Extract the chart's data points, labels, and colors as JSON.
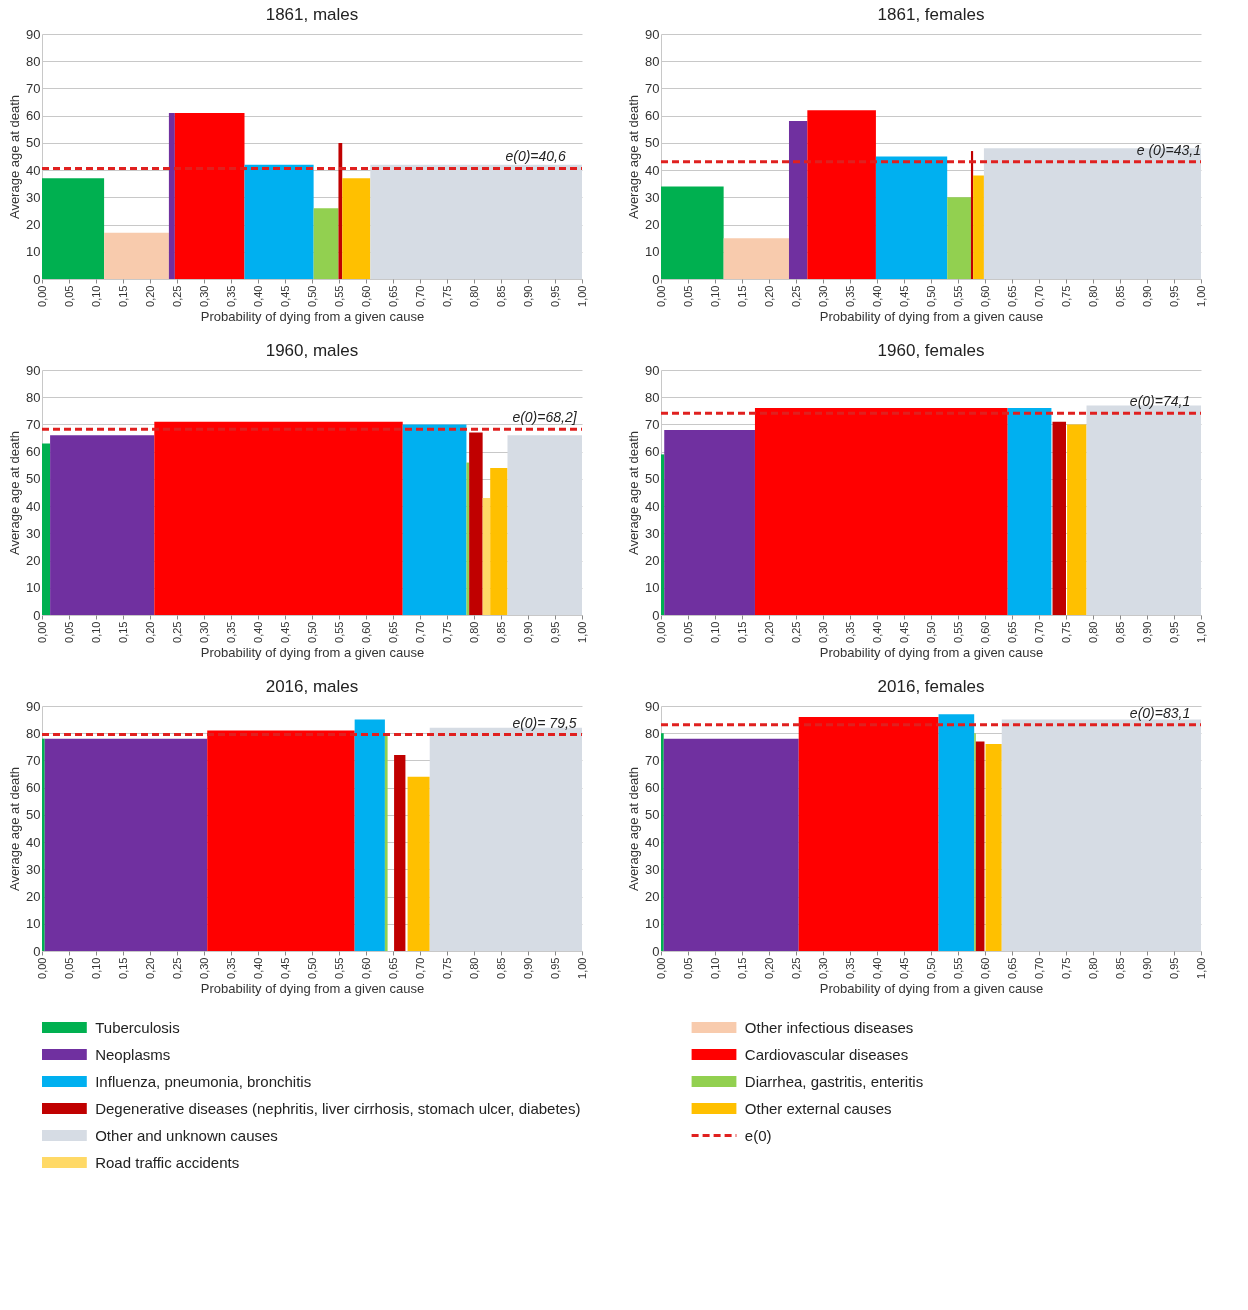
{
  "chart_data": [
    {
      "type": "area",
      "title": "1861, males",
      "xlabel": "Probability of dying from a given cause",
      "ylabel": "Average age at death",
      "xlim": [
        0,
        1
      ],
      "xticks": [
        {
          "value": 0,
          "label": "0,00"
        },
        {
          "value": 0.05,
          "label": "0,05"
        },
        {
          "value": 0.1,
          "label": "0,10"
        },
        {
          "value": 0.15,
          "label": "0,15"
        },
        {
          "value": 0.2,
          "label": "0,20"
        },
        {
          "value": 0.25,
          "label": "0,25"
        },
        {
          "value": 0.3,
          "label": "0,30"
        },
        {
          "value": 0.35,
          "label": "0,35"
        },
        {
          "value": 0.4,
          "label": "0,40"
        },
        {
          "value": 0.45,
          "label": "0,45"
        },
        {
          "value": 0.5,
          "label": "0,50"
        },
        {
          "value": 0.55,
          "label": "0,55"
        },
        {
          "value": 0.6,
          "label": "0,60"
        },
        {
          "value": 0.65,
          "label": "0,65"
        },
        {
          "value": 0.7,
          "label": "0,70"
        },
        {
          "value": 0.75,
          "label": "0,75"
        },
        {
          "value": 0.8,
          "label": "0,80"
        },
        {
          "value": 0.85,
          "label": "0,85"
        },
        {
          "value": 0.9,
          "label": "0,90"
        },
        {
          "value": 0.95,
          "label": "0,95"
        },
        {
          "value": 1,
          "label": "1,00"
        }
      ],
      "ylim": [
        0,
        90
      ],
      "yticks": [
        0,
        10,
        20,
        30,
        40,
        50,
        60,
        70,
        80,
        90
      ],
      "grid": "y",
      "legend": "bottom",
      "series": [
        {
          "name": "Tuberculosis",
          "color": "#00b050",
          "x": [
            0,
            0.115
          ],
          "values": [
            37,
            37
          ]
        },
        {
          "name": "Other infectious diseases",
          "color": "#f8cbad",
          "x": [
            0.115,
            0.235
          ],
          "values": [
            17,
            17
          ]
        },
        {
          "name": "Neoplasms",
          "color": "#7030a0",
          "x": [
            0.235,
            0.246
          ],
          "values": [
            61,
            61
          ]
        },
        {
          "name": "Cardiovascular diseases",
          "color": "#ff0000",
          "x": [
            0.246,
            0.375
          ],
          "values": [
            61,
            61
          ]
        },
        {
          "name": "Influenza, pneumonia, bronchitis",
          "color": "#00b0f0",
          "x": [
            0.375,
            0.503
          ],
          "values": [
            42,
            42
          ]
        },
        {
          "name": "Diarrhea, gastritis, enteritis",
          "color": "#92d050",
          "x": [
            0.503,
            0.549
          ],
          "values": [
            26,
            26
          ]
        },
        {
          "name": "Degenerative diseases (nephritis, liver cirrhosis, stomach ulcer, diabetes)",
          "color": "#c00000",
          "x": [
            0.549,
            0.556
          ],
          "values": [
            50,
            50
          ]
        },
        {
          "name": "Other external causes",
          "color": "#ffc000",
          "x": [
            0.556,
            0.608
          ],
          "values": [
            37,
            37
          ]
        },
        {
          "name": "Other and unknown causes",
          "color": "#d6dce4",
          "x": [
            0.608,
            1
          ],
          "values": [
            42,
            42
          ]
        },
        {
          "name": "e(0)",
          "type": "line",
          "line_style": "dashed",
          "color": "#e0201f",
          "x": [
            0,
            1
          ],
          "values": [
            40.6,
            40.6
          ]
        }
      ],
      "annotations": [
        {
          "text": "e(0)=40,6",
          "x": 0.97,
          "y": 40.6
        }
      ]
    },
    {
      "type": "area",
      "title": "1861, females",
      "xlabel": "Probability of dying from a given cause",
      "ylabel": "Average age at death",
      "xlim": [
        0,
        1
      ],
      "xticks": [
        {
          "value": 0,
          "label": "0,00"
        },
        {
          "value": 0.05,
          "label": "0,05"
        },
        {
          "value": 0.1,
          "label": "0,10"
        },
        {
          "value": 0.15,
          "label": "0,15"
        },
        {
          "value": 0.2,
          "label": "0,20"
        },
        {
          "value": 0.25,
          "label": "0,25"
        },
        {
          "value": 0.3,
          "label": "0,30"
        },
        {
          "value": 0.35,
          "label": "0,35"
        },
        {
          "value": 0.4,
          "label": "0,40"
        },
        {
          "value": 0.45,
          "label": "0,45"
        },
        {
          "value": 0.5,
          "label": "0,50"
        },
        {
          "value": 0.55,
          "label": "0,55"
        },
        {
          "value": 0.6,
          "label": "0,60"
        },
        {
          "value": 0.65,
          "label": "0,65"
        },
        {
          "value": 0.7,
          "label": "0,70"
        },
        {
          "value": 0.75,
          "label": "0,75"
        },
        {
          "value": 0.8,
          "label": "0,80"
        },
        {
          "value": 0.85,
          "label": "0,85"
        },
        {
          "value": 0.9,
          "label": "0,90"
        },
        {
          "value": 0.95,
          "label": "0,95"
        },
        {
          "value": 1,
          "label": "1,00"
        }
      ],
      "ylim": [
        0,
        90
      ],
      "yticks": [
        0,
        10,
        20,
        30,
        40,
        50,
        60,
        70,
        80,
        90
      ],
      "grid": "y",
      "legend": "bottom",
      "series": [
        {
          "name": "Tuberculosis",
          "color": "#00b050",
          "x": [
            0,
            0.116
          ],
          "values": [
            34,
            34
          ]
        },
        {
          "name": "Other infectious diseases",
          "color": "#f8cbad",
          "x": [
            0.116,
            0.237
          ],
          "values": [
            15,
            15
          ]
        },
        {
          "name": "Neoplasms",
          "color": "#7030a0",
          "x": [
            0.237,
            0.271
          ],
          "values": [
            58,
            58
          ]
        },
        {
          "name": "Cardiovascular diseases",
          "color": "#ff0000",
          "x": [
            0.271,
            0.398
          ],
          "values": [
            62,
            62
          ]
        },
        {
          "name": "Influenza, pneumonia, bronchitis",
          "color": "#00b0f0",
          "x": [
            0.398,
            0.53
          ],
          "values": [
            45,
            45
          ]
        },
        {
          "name": "Diarrhea, gastritis, enteritis",
          "color": "#92d050",
          "x": [
            0.53,
            0.574
          ],
          "values": [
            30,
            30
          ]
        },
        {
          "name": "Degenerative diseases (nephritis, liver cirrhosis, stomach ulcer, diabetes)",
          "color": "#c00000",
          "x": [
            0.574,
            0.578
          ],
          "values": [
            47,
            47
          ]
        },
        {
          "name": "Other external causes",
          "color": "#ffc000",
          "x": [
            0.578,
            0.598
          ],
          "values": [
            38,
            38
          ]
        },
        {
          "name": "Other and unknown causes",
          "color": "#d6dce4",
          "x": [
            0.598,
            1
          ],
          "values": [
            48,
            48
          ]
        },
        {
          "name": "e(0)",
          "type": "line",
          "line_style": "dashed",
          "color": "#e0201f",
          "x": [
            0,
            1
          ],
          "values": [
            43.1,
            43.1
          ]
        }
      ],
      "annotations": [
        {
          "text": "e (0)=43,1",
          "x": 1,
          "y": 43.1
        }
      ]
    },
    {
      "type": "area",
      "title": "1960, males",
      "xlabel": "Probability of dying from a given cause",
      "ylabel": "Average age at death",
      "xlim": [
        0,
        1
      ],
      "xticks": [
        {
          "value": 0,
          "label": "0,00"
        },
        {
          "value": 0.05,
          "label": "0,05"
        },
        {
          "value": 0.1,
          "label": "0,10"
        },
        {
          "value": 0.15,
          "label": "0,15"
        },
        {
          "value": 0.2,
          "label": "0,20"
        },
        {
          "value": 0.25,
          "label": "0,25"
        },
        {
          "value": 0.3,
          "label": "0,30"
        },
        {
          "value": 0.35,
          "label": "0,35"
        },
        {
          "value": 0.4,
          "label": "0,40"
        },
        {
          "value": 0.45,
          "label": "0,45"
        },
        {
          "value": 0.5,
          "label": "0,50"
        },
        {
          "value": 0.55,
          "label": "0,55"
        },
        {
          "value": 0.6,
          "label": "0,60"
        },
        {
          "value": 0.65,
          "label": "0,65"
        },
        {
          "value": 0.7,
          "label": "0,70"
        },
        {
          "value": 0.75,
          "label": "0,75"
        },
        {
          "value": 0.8,
          "label": "0,80"
        },
        {
          "value": 0.85,
          "label": "0,85"
        },
        {
          "value": 0.9,
          "label": "0,90"
        },
        {
          "value": 0.95,
          "label": "0,95"
        },
        {
          "value": 1,
          "label": "1,00"
        }
      ],
      "ylim": [
        0,
        90
      ],
      "yticks": [
        0,
        10,
        20,
        30,
        40,
        50,
        60,
        70,
        80,
        90
      ],
      "grid": "y",
      "legend": "bottom",
      "series": [
        {
          "name": "Tuberculosis",
          "color": "#00b050",
          "x": [
            0,
            0.015
          ],
          "values": [
            63,
            63
          ]
        },
        {
          "name": "Neoplasms",
          "color": "#7030a0",
          "x": [
            0.015,
            0.208
          ],
          "values": [
            66,
            66
          ]
        },
        {
          "name": "Cardiovascular diseases",
          "color": "#ff0000",
          "x": [
            0.208,
            0.668
          ],
          "values": [
            71,
            71
          ]
        },
        {
          "name": "Influenza, pneumonia, bronchitis",
          "color": "#00b0f0",
          "x": [
            0.668,
            0.786
          ],
          "values": [
            70,
            70
          ]
        },
        {
          "name": "Diarrhea, gastritis, enteritis",
          "color": "#92d050",
          "x": [
            0.786,
            0.791
          ],
          "values": [
            56,
            56
          ]
        },
        {
          "name": "Degenerative diseases (nephritis, liver cirrhosis, stomach ulcer, diabetes)",
          "color": "#c00000",
          "x": [
            0.791,
            0.816
          ],
          "values": [
            67,
            67
          ]
        },
        {
          "name": "Road traffic accidents",
          "color": "#ffd966",
          "x": [
            0.816,
            0.83
          ],
          "values": [
            43,
            43
          ]
        },
        {
          "name": "Other external causes",
          "color": "#ffc000",
          "x": [
            0.83,
            0.862
          ],
          "values": [
            54,
            54
          ]
        },
        {
          "name": "Other and unknown causes",
          "color": "#d6dce4",
          "x": [
            0.862,
            1
          ],
          "values": [
            66,
            66
          ]
        },
        {
          "name": "e(0)",
          "type": "line",
          "line_style": "dashed",
          "color": "#e0201f",
          "x": [
            0,
            1
          ],
          "values": [
            68.2,
            68.2
          ]
        }
      ],
      "annotations": [
        {
          "text": "e(0)=68,2]",
          "x": 0.99,
          "y": 68.2
        }
      ]
    },
    {
      "type": "area",
      "title": "1960, females",
      "xlabel": "Probability of dying from a given cause",
      "ylabel": "Average age at death",
      "xlim": [
        0,
        1
      ],
      "xticks": [
        {
          "value": 0,
          "label": "0,00"
        },
        {
          "value": 0.05,
          "label": "0,05"
        },
        {
          "value": 0.1,
          "label": "0,10"
        },
        {
          "value": 0.15,
          "label": "0,15"
        },
        {
          "value": 0.2,
          "label": "0,20"
        },
        {
          "value": 0.25,
          "label": "0,25"
        },
        {
          "value": 0.3,
          "label": "0,30"
        },
        {
          "value": 0.35,
          "label": "0,35"
        },
        {
          "value": 0.4,
          "label": "0,40"
        },
        {
          "value": 0.45,
          "label": "0,45"
        },
        {
          "value": 0.5,
          "label": "0,50"
        },
        {
          "value": 0.55,
          "label": "0,55"
        },
        {
          "value": 0.6,
          "label": "0,60"
        },
        {
          "value": 0.65,
          "label": "0,65"
        },
        {
          "value": 0.7,
          "label": "0,70"
        },
        {
          "value": 0.75,
          "label": "0,75"
        },
        {
          "value": 0.8,
          "label": "0,80"
        },
        {
          "value": 0.85,
          "label": "0,85"
        },
        {
          "value": 0.9,
          "label": "0,90"
        },
        {
          "value": 0.95,
          "label": "0,95"
        },
        {
          "value": 1,
          "label": "1,00"
        }
      ],
      "ylim": [
        0,
        90
      ],
      "yticks": [
        0,
        10,
        20,
        30,
        40,
        50,
        60,
        70,
        80,
        90
      ],
      "grid": "y",
      "legend": "bottom",
      "series": [
        {
          "name": "Tuberculosis",
          "color": "#00b050",
          "x": [
            0,
            0.006
          ],
          "values": [
            59,
            59
          ]
        },
        {
          "name": "Neoplasms",
          "color": "#7030a0",
          "x": [
            0.006,
            0.174
          ],
          "values": [
            68,
            68
          ]
        },
        {
          "name": "Cardiovascular diseases",
          "color": "#ff0000",
          "x": [
            0.174,
            0.642
          ],
          "values": [
            76,
            76
          ]
        },
        {
          "name": "Influenza, pneumonia, bronchitis",
          "color": "#00b0f0",
          "x": [
            0.642,
            0.723
          ],
          "values": [
            76,
            76
          ]
        },
        {
          "name": "Degenerative diseases (nephritis, liver cirrhosis, stomach ulcer, diabetes)",
          "color": "#c00000",
          "x": [
            0.725,
            0.75
          ],
          "values": [
            71,
            71
          ]
        },
        {
          "name": "Other external causes",
          "color": "#ffc000",
          "x": [
            0.752,
            0.788
          ],
          "values": [
            70,
            70
          ]
        },
        {
          "name": "Other and unknown causes",
          "color": "#d6dce4",
          "x": [
            0.788,
            1
          ],
          "values": [
            77,
            77
          ]
        },
        {
          "name": "e(0)",
          "type": "line",
          "line_style": "dashed",
          "color": "#e0201f",
          "x": [
            0,
            1
          ],
          "values": [
            74.1,
            74.1
          ]
        }
      ],
      "annotations": [
        {
          "text": "e(0)=74,1",
          "x": 0.98,
          "y": 74.1
        }
      ]
    },
    {
      "type": "area",
      "title": "2016, males",
      "xlabel": "Probability of dying from a given cause",
      "ylabel": "Average age at death",
      "xlim": [
        0,
        1
      ],
      "xticks": [
        {
          "value": 0,
          "label": "0,00"
        },
        {
          "value": 0.05,
          "label": "0,05"
        },
        {
          "value": 0.1,
          "label": "0,10"
        },
        {
          "value": 0.15,
          "label": "0,15"
        },
        {
          "value": 0.2,
          "label": "0,20"
        },
        {
          "value": 0.25,
          "label": "0,25"
        },
        {
          "value": 0.3,
          "label": "0,30"
        },
        {
          "value": 0.35,
          "label": "0,35"
        },
        {
          "value": 0.4,
          "label": "0,40"
        },
        {
          "value": 0.45,
          "label": "0,45"
        },
        {
          "value": 0.5,
          "label": "0,50"
        },
        {
          "value": 0.55,
          "label": "0,55"
        },
        {
          "value": 0.6,
          "label": "0,60"
        },
        {
          "value": 0.65,
          "label": "0,65"
        },
        {
          "value": 0.7,
          "label": "0,70"
        },
        {
          "value": 0.75,
          "label": "0,75"
        },
        {
          "value": 0.8,
          "label": "0,80"
        },
        {
          "value": 0.85,
          "label": "0,85"
        },
        {
          "value": 0.9,
          "label": "0,90"
        },
        {
          "value": 0.95,
          "label": "0,95"
        },
        {
          "value": 1,
          "label": "1,00"
        }
      ],
      "ylim": [
        0,
        90
      ],
      "yticks": [
        0,
        10,
        20,
        30,
        40,
        50,
        60,
        70,
        80,
        90
      ],
      "grid": "y",
      "legend": "bottom",
      "series": [
        {
          "name": "Tuberculosis",
          "color": "#00b050",
          "x": [
            0,
            0.005
          ],
          "values": [
            78,
            78
          ]
        },
        {
          "name": "Neoplasms",
          "color": "#7030a0",
          "x": [
            0.005,
            0.306
          ],
          "values": [
            78,
            78
          ]
        },
        {
          "name": "Cardiovascular diseases",
          "color": "#ff0000",
          "x": [
            0.306,
            0.579
          ],
          "values": [
            81,
            81
          ]
        },
        {
          "name": "Influenza, pneumonia, bronchitis",
          "color": "#00b0f0",
          "x": [
            0.579,
            0.635
          ],
          "values": [
            85,
            85
          ]
        },
        {
          "name": "Diarrhea, gastritis, enteritis",
          "color": "#92d050",
          "x": [
            0.635,
            0.64
          ],
          "values": [
            80,
            80
          ]
        },
        {
          "name": "Degenerative diseases (nephritis, liver cirrhosis, stomach ulcer, diabetes)",
          "color": "#c00000",
          "x": [
            0.652,
            0.673
          ],
          "values": [
            72,
            72
          ]
        },
        {
          "name": "Other external causes",
          "color": "#ffc000",
          "x": [
            0.677,
            0.718
          ],
          "values": [
            64,
            64
          ]
        },
        {
          "name": "Other and unknown causes",
          "color": "#d6dce4",
          "x": [
            0.718,
            1
          ],
          "values": [
            82,
            82
          ]
        },
        {
          "name": "e(0)",
          "type": "line",
          "line_style": "dashed",
          "color": "#e0201f",
          "x": [
            0,
            1
          ],
          "values": [
            79.5,
            79.5
          ]
        }
      ],
      "annotations": [
        {
          "text": "e(0)= 79,5",
          "x": 0.99,
          "y": 79.5
        }
      ]
    },
    {
      "type": "area",
      "title": "2016, females",
      "xlabel": "Probability of dying from a given cause",
      "ylabel": "Average age at death",
      "xlim": [
        0,
        1
      ],
      "xticks": [
        {
          "value": 0,
          "label": "0,00"
        },
        {
          "value": 0.05,
          "label": "0,05"
        },
        {
          "value": 0.1,
          "label": "0,10"
        },
        {
          "value": 0.15,
          "label": "0,15"
        },
        {
          "value": 0.2,
          "label": "0,20"
        },
        {
          "value": 0.25,
          "label": "0,25"
        },
        {
          "value": 0.3,
          "label": "0,30"
        },
        {
          "value": 0.35,
          "label": "0,35"
        },
        {
          "value": 0.4,
          "label": "0,40"
        },
        {
          "value": 0.45,
          "label": "0,45"
        },
        {
          "value": 0.5,
          "label": "0,50"
        },
        {
          "value": 0.55,
          "label": "0,55"
        },
        {
          "value": 0.6,
          "label": "0,60"
        },
        {
          "value": 0.65,
          "label": "0,65"
        },
        {
          "value": 0.7,
          "label": "0,70"
        },
        {
          "value": 0.75,
          "label": "0,75"
        },
        {
          "value": 0.8,
          "label": "0,80"
        },
        {
          "value": 0.85,
          "label": "0,85"
        },
        {
          "value": 0.9,
          "label": "0,90"
        },
        {
          "value": 0.95,
          "label": "0,95"
        },
        {
          "value": 1,
          "label": "1,00"
        }
      ],
      "ylim": [
        0,
        90
      ],
      "yticks": [
        0,
        10,
        20,
        30,
        40,
        50,
        60,
        70,
        80,
        90
      ],
      "grid": "y",
      "legend": "bottom",
      "series": [
        {
          "name": "Tuberculosis",
          "color": "#00b050",
          "x": [
            0,
            0.005
          ],
          "values": [
            80,
            80
          ]
        },
        {
          "name": "Neoplasms",
          "color": "#7030a0",
          "x": [
            0.005,
            0.255
          ],
          "values": [
            78,
            78
          ]
        },
        {
          "name": "Cardiovascular diseases",
          "color": "#ff0000",
          "x": [
            0.255,
            0.514
          ],
          "values": [
            86,
            86
          ]
        },
        {
          "name": "Influenza, pneumonia, bronchitis",
          "color": "#00b0f0",
          "x": [
            0.514,
            0.58
          ],
          "values": [
            87,
            87
          ]
        },
        {
          "name": "Diarrhea, gastritis, enteritis",
          "color": "#92d050",
          "x": [
            0.58,
            0.583
          ],
          "values": [
            80,
            80
          ]
        },
        {
          "name": "Degenerative diseases (nephritis, liver cirrhosis, stomach ulcer, diabetes)",
          "color": "#c00000",
          "x": [
            0.583,
            0.599
          ],
          "values": [
            77,
            77
          ]
        },
        {
          "name": "Other external causes",
          "color": "#ffc000",
          "x": [
            0.601,
            0.631
          ],
          "values": [
            76,
            76
          ]
        },
        {
          "name": "Other and unknown causes",
          "color": "#d6dce4",
          "x": [
            0.631,
            1
          ],
          "values": [
            85,
            85
          ]
        },
        {
          "name": "e(0)",
          "type": "line",
          "line_style": "dashed",
          "color": "#e0201f",
          "x": [
            0,
            1
          ],
          "values": [
            83.1,
            83.1
          ]
        }
      ],
      "annotations": [
        {
          "text": "e(0)=83,1",
          "x": 0.98,
          "y": 83.1
        }
      ]
    }
  ]
}
